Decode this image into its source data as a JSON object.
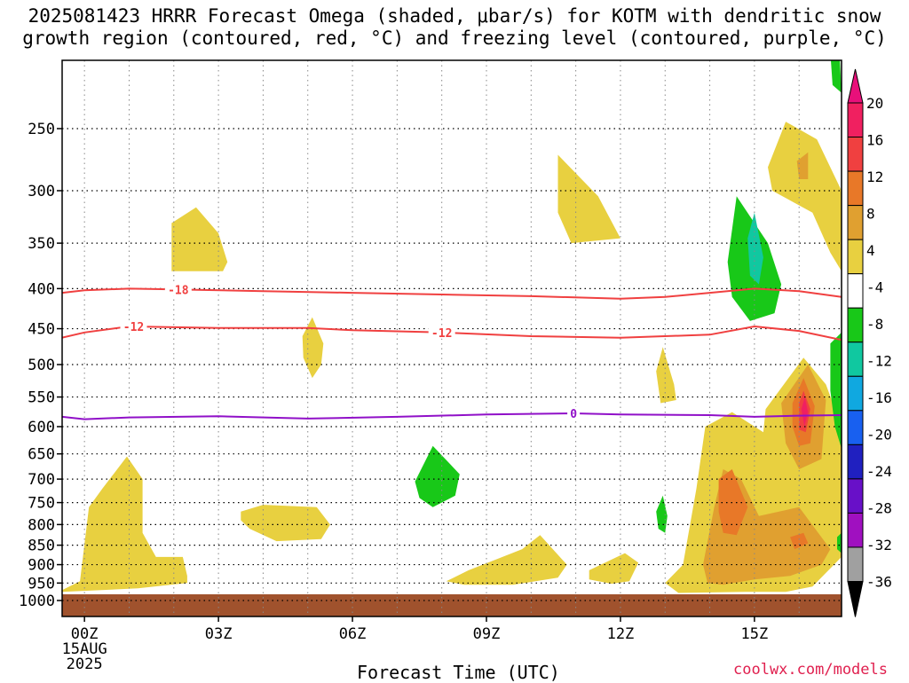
{
  "title_line1": "2025081423 HRRR Forecast Omega (shaded, μbar/s) for KOTM with dendritic snow",
  "title_line2": "growth region (contoured, red, °C) and freezing level (contoured, purple, °C)",
  "xlabel": "Forecast Time (UTC)",
  "credit": "coolwx.com/models",
  "chart_data": {
    "type": "heatmap",
    "title": "2025081423 HRRR Forecast Omega (shaded, μbar/s) for KOTM with dendritic snow growth region (contoured, red, °C) and freezing level (contoured, purple, °C)",
    "xlabel": "Forecast Time (UTC)",
    "ylabel": "",
    "x_unit": "hours from 00Z 15AUG 2025",
    "xlim": [
      -0.5,
      16.95
    ],
    "ylim_pressure_hPa": [
      1000,
      200
    ],
    "y_scale": "log-pressure (inverted)",
    "grid": true,
    "x_ticks": [
      {
        "hour": 0,
        "label": "00Z",
        "sub1": "15AUG",
        "sub2": "2025"
      },
      {
        "hour": 3,
        "label": "03Z"
      },
      {
        "hour": 6,
        "label": "06Z"
      },
      {
        "hour": 9,
        "label": "09Z"
      },
      {
        "hour": 12,
        "label": "12Z"
      },
      {
        "hour": 15,
        "label": "15Z"
      }
    ],
    "y_ticks": [
      250,
      300,
      350,
      400,
      450,
      500,
      550,
      600,
      650,
      700,
      750,
      800,
      850,
      900,
      950,
      1000
    ],
    "colorbar": {
      "labels": [
        "20",
        "16",
        "12",
        "8",
        "4",
        "-4",
        "-8",
        "-12",
        "-16",
        "-20",
        "-24",
        "-28",
        "-32",
        "-36"
      ],
      "colors": [
        "#f02060",
        "#f04040",
        "#e87828",
        "#e0a030",
        "#e8d040",
        "#ffffff",
        "#18c818",
        "#10c8a0",
        "#10a8e0",
        "#1860f0",
        "#2020c0",
        "#6810c8",
        "#a010c0",
        "#a0a0a0",
        "#000000"
      ],
      "top_arrow_color": "#e8107a",
      "bottom_arrow_color": "#000000"
    },
    "ground": {
      "from_hPa": 1000,
      "color": "#a0522d"
    },
    "omega_regions": [
      {
        "value": 4,
        "color": "#e8d040",
        "pts": [
          [
            -0.5,
            970
          ],
          [
            -0.1,
            945
          ],
          [
            0.1,
            760
          ],
          [
            0.4,
            720
          ],
          [
            0.95,
            655
          ],
          [
            1.3,
            700
          ],
          [
            1.3,
            820
          ],
          [
            1.6,
            880
          ],
          [
            2.2,
            880
          ],
          [
            2.3,
            930
          ],
          [
            2.3,
            950
          ],
          [
            1.2,
            965
          ],
          [
            -0.5,
            975
          ]
        ]
      },
      {
        "value": 4,
        "color": "#e8d040",
        "pts": [
          [
            1.95,
            380
          ],
          [
            1.95,
            330
          ],
          [
            2.5,
            315
          ],
          [
            3.0,
            340
          ],
          [
            3.2,
            370
          ],
          [
            3.1,
            380
          ]
        ]
      },
      {
        "value": 4,
        "color": "#e8d040",
        "pts": [
          [
            3.5,
            770
          ],
          [
            4.0,
            755
          ],
          [
            5.2,
            760
          ],
          [
            5.5,
            800
          ],
          [
            5.3,
            835
          ],
          [
            4.3,
            840
          ],
          [
            3.7,
            810
          ],
          [
            3.5,
            790
          ]
        ]
      },
      {
        "value": 4,
        "color": "#e8d040",
        "pts": [
          [
            4.88,
            460
          ],
          [
            5.1,
            435
          ],
          [
            5.35,
            470
          ],
          [
            5.3,
            500
          ],
          [
            5.1,
            520
          ],
          [
            4.9,
            490
          ]
        ]
      },
      {
        "value": 4,
        "color": "#e8d040",
        "pts": [
          [
            8.1,
            945
          ],
          [
            8.6,
            915
          ],
          [
            9.8,
            860
          ],
          [
            10.2,
            825
          ],
          [
            10.8,
            900
          ],
          [
            10.6,
            935
          ],
          [
            9.6,
            955
          ],
          [
            8.5,
            955
          ]
        ]
      },
      {
        "value": 4,
        "color": "#e8d040",
        "pts": [
          [
            10.6,
            270
          ],
          [
            11.5,
            305
          ],
          [
            12.0,
            345
          ],
          [
            10.9,
            350
          ],
          [
            10.6,
            320
          ]
        ]
      },
      {
        "value": 4,
        "color": "#e8d040",
        "pts": [
          [
            11.3,
            915
          ],
          [
            12.1,
            870
          ],
          [
            12.4,
            895
          ],
          [
            12.2,
            945
          ],
          [
            11.8,
            952
          ],
          [
            11.3,
            940
          ]
        ]
      },
      {
        "value": 4,
        "color": "#e8d040",
        "pts": [
          [
            12.8,
            510
          ],
          [
            12.95,
            475
          ],
          [
            13.2,
            530
          ],
          [
            13.25,
            555
          ],
          [
            12.9,
            560
          ]
        ]
      },
      {
        "value": 4,
        "color": "#e8d040",
        "pts": [
          [
            13.3,
            978
          ],
          [
            13.0,
            950
          ],
          [
            13.4,
            900
          ],
          [
            13.7,
            720
          ],
          [
            13.9,
            600
          ],
          [
            14.5,
            575
          ],
          [
            15.2,
            610
          ],
          [
            15.25,
            570
          ],
          [
            16.1,
            490
          ],
          [
            16.6,
            530
          ],
          [
            16.95,
            600
          ],
          [
            16.95,
            880
          ],
          [
            16.3,
            960
          ],
          [
            15.7,
            975
          ],
          [
            14.8,
            975
          ]
        ]
      },
      {
        "value": 4,
        "color": "#e8d040",
        "pts": [
          [
            15.3,
            280
          ],
          [
            15.7,
            245
          ],
          [
            16.4,
            258
          ],
          [
            16.95,
            300
          ],
          [
            16.95,
            380
          ],
          [
            16.7,
            360
          ],
          [
            16.3,
            320
          ],
          [
            15.4,
            300
          ]
        ]
      },
      {
        "value": 8,
        "color": "#e0a030",
        "pts": [
          [
            13.95,
            950
          ],
          [
            13.85,
            900
          ],
          [
            14.1,
            760
          ],
          [
            14.3,
            680
          ],
          [
            14.7,
            700
          ],
          [
            15.1,
            780
          ],
          [
            16.0,
            760
          ],
          [
            16.7,
            860
          ],
          [
            16.5,
            900
          ],
          [
            15.8,
            930
          ],
          [
            15.0,
            940
          ],
          [
            14.3,
            955
          ]
        ]
      },
      {
        "value": 8,
        "color": "#e0a030",
        "pts": [
          [
            15.6,
            560
          ],
          [
            16.2,
            500
          ],
          [
            16.6,
            555
          ],
          [
            16.5,
            660
          ],
          [
            16.0,
            680
          ],
          [
            15.7,
            630
          ]
        ]
      },
      {
        "value": 8,
        "color": "#e0a030",
        "pts": [
          [
            15.95,
            275
          ],
          [
            16.2,
            268
          ],
          [
            16.2,
            290
          ],
          [
            16.0,
            290
          ]
        ]
      },
      {
        "value": 12,
        "color": "#e87828",
        "pts": [
          [
            14.2,
            700
          ],
          [
            14.5,
            680
          ],
          [
            14.85,
            760
          ],
          [
            14.6,
            825
          ],
          [
            14.3,
            820
          ],
          [
            14.2,
            770
          ]
        ]
      },
      {
        "value": 12,
        "color": "#e87828",
        "pts": [
          [
            15.85,
            560
          ],
          [
            16.1,
            520
          ],
          [
            16.35,
            565
          ],
          [
            16.25,
            630
          ],
          [
            16.0,
            635
          ],
          [
            15.85,
            600
          ]
        ]
      },
      {
        "value": 12,
        "color": "#e87828",
        "pts": [
          [
            15.8,
            830
          ],
          [
            16.1,
            820
          ],
          [
            16.2,
            845
          ],
          [
            15.9,
            860
          ]
        ]
      },
      {
        "value": 16,
        "color": "#f04040",
        "pts": [
          [
            16.0,
            560
          ],
          [
            16.1,
            540
          ],
          [
            16.25,
            570
          ],
          [
            16.15,
            610
          ],
          [
            16.0,
            605
          ]
        ]
      },
      {
        "value": 20,
        "color": "#f02060",
        "pts": [
          [
            16.05,
            570
          ],
          [
            16.13,
            550
          ],
          [
            16.2,
            575
          ],
          [
            16.12,
            600
          ]
        ]
      },
      {
        "value": -8,
        "color": "#18c818",
        "pts": [
          [
            7.4,
            705
          ],
          [
            7.8,
            635
          ],
          [
            8.4,
            690
          ],
          [
            8.3,
            735
          ],
          [
            7.8,
            760
          ],
          [
            7.5,
            740
          ]
        ]
      },
      {
        "value": -8,
        "color": "#18c818",
        "pts": [
          [
            12.8,
            770
          ],
          [
            12.95,
            735
          ],
          [
            13.05,
            780
          ],
          [
            13.0,
            820
          ],
          [
            12.85,
            810
          ]
        ]
      },
      {
        "value": -8,
        "color": "#18c818",
        "pts": [
          [
            14.4,
            370
          ],
          [
            14.6,
            305
          ],
          [
            15.3,
            350
          ],
          [
            15.6,
            395
          ],
          [
            15.45,
            430
          ],
          [
            14.9,
            440
          ],
          [
            14.5,
            410
          ]
        ]
      },
      {
        "value": -8,
        "color": "#18c818",
        "pts": [
          [
            16.7,
            200
          ],
          [
            16.9,
            198
          ],
          [
            16.95,
            225
          ],
          [
            16.75,
            220
          ]
        ]
      },
      {
        "value": -8,
        "color": "#18c818",
        "pts": [
          [
            16.7,
            470
          ],
          [
            16.95,
            455
          ],
          [
            16.95,
            640
          ],
          [
            16.8,
            600
          ],
          [
            16.7,
            540
          ]
        ]
      },
      {
        "value": -8,
        "color": "#18c818",
        "pts": [
          [
            16.85,
            830
          ],
          [
            16.95,
            820
          ],
          [
            16.95,
            870
          ],
          [
            16.85,
            860
          ]
        ]
      },
      {
        "value": -12,
        "color": "#10c8a0",
        "pts": [
          [
            14.85,
            345
          ],
          [
            15.0,
            320
          ],
          [
            15.2,
            365
          ],
          [
            15.1,
            395
          ],
          [
            14.9,
            385
          ]
        ]
      }
    ],
    "contours": [
      {
        "label": "-18",
        "color": "#f04040",
        "pts": [
          [
            -0.5,
            405
          ],
          [
            0.0,
            402
          ],
          [
            1.0,
            400
          ],
          [
            2.0,
            401
          ],
          [
            4.0,
            403
          ],
          [
            6.0,
            405
          ],
          [
            8.0,
            407
          ],
          [
            10.0,
            409
          ],
          [
            12.0,
            412
          ],
          [
            13.0,
            410
          ],
          [
            14.0,
            405
          ],
          [
            15.0,
            400
          ],
          [
            16.0,
            403
          ],
          [
            16.95,
            410
          ]
        ],
        "labels_at": [
          2.1
        ]
      },
      {
        "label": "-12",
        "color": "#f04040",
        "pts": [
          [
            -0.5,
            462
          ],
          [
            0.0,
            455
          ],
          [
            1.0,
            447
          ],
          [
            2.0,
            448
          ],
          [
            3.0,
            449
          ],
          [
            5.0,
            449
          ],
          [
            6.0,
            452
          ],
          [
            8.0,
            455
          ],
          [
            10.0,
            460
          ],
          [
            12.0,
            462
          ],
          [
            14.0,
            458
          ],
          [
            15.0,
            447
          ],
          [
            16.0,
            453
          ],
          [
            16.95,
            465
          ]
        ],
        "labels_at": [
          1.1,
          8.0
        ]
      },
      {
        "label": "0",
        "color": "#9010c8",
        "pts": [
          [
            -0.5,
            583
          ],
          [
            0.0,
            587
          ],
          [
            1.0,
            584
          ],
          [
            3.0,
            582
          ],
          [
            5.0,
            586
          ],
          [
            7.0,
            583
          ],
          [
            9.0,
            579
          ],
          [
            10.95,
            577
          ],
          [
            12.0,
            579
          ],
          [
            14.0,
            580
          ],
          [
            15.0,
            583
          ],
          [
            16.0,
            581
          ],
          [
            16.95,
            580
          ]
        ],
        "labels_at": [
          10.95
        ]
      }
    ]
  }
}
